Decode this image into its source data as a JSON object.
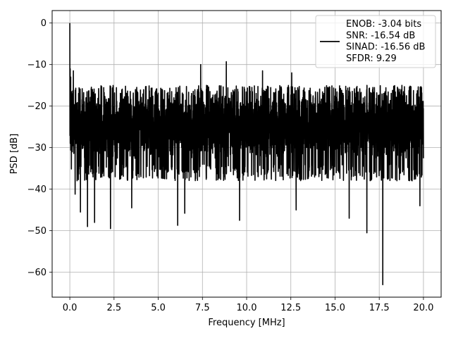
{
  "chart_data": {
    "type": "line",
    "xlabel": "Frequency [MHz]",
    "ylabel": "PSD [dB]",
    "xlim": [
      -1.0,
      21.0
    ],
    "ylim": [
      -66.0,
      3.0
    ],
    "xticks": [
      0.0,
      2.5,
      5.0,
      7.5,
      10.0,
      12.5,
      15.0,
      17.5,
      20.0
    ],
    "xtick_labels": [
      "0.0",
      "2.5",
      "5.0",
      "7.5",
      "10.0",
      "12.5",
      "15.0",
      "17.5",
      "20.0"
    ],
    "yticks": [
      0,
      -10,
      -20,
      -30,
      -40,
      -50,
      -60
    ],
    "ytick_labels": [
      "0",
      "−10",
      "−20",
      "−30",
      "−40",
      "−50",
      "−60"
    ],
    "grid": true,
    "legend_position": "top-right",
    "series": [
      {
        "name": "ENOB: -3.04 bits\nSNR: -16.54 dB\nSINAD: -16.56 dB\nSFDR: 9.29",
        "color": "#000000",
        "x_range": [
          0.0,
          20.0
        ],
        "mean_db": -24.5,
        "upper_envelope_db": -17.0,
        "lower_envelope_db": -34.0,
        "peaks": [
          {
            "x": 0.0,
            "y": 0.0
          },
          {
            "x": 0.02,
            "y": -11.0
          },
          {
            "x": 0.05,
            "y": -13.0
          },
          {
            "x": 0.1,
            "y": -17.0
          },
          {
            "x": 0.15,
            "y": -18.5
          },
          {
            "x": 0.2,
            "y": -11.5
          },
          {
            "x": 0.25,
            "y": -28.0
          },
          {
            "x": 7.4,
            "y": -10.0
          },
          {
            "x": 8.85,
            "y": -9.3
          },
          {
            "x": 10.9,
            "y": -11.5
          },
          {
            "x": 12.55,
            "y": -12.0
          }
        ],
        "dips": [
          {
            "x": 0.3,
            "y": -41.2
          },
          {
            "x": 0.6,
            "y": -45.5
          },
          {
            "x": 1.0,
            "y": -49.0
          },
          {
            "x": 1.4,
            "y": -48.0
          },
          {
            "x": 2.3,
            "y": -49.5
          },
          {
            "x": 3.5,
            "y": -44.5
          },
          {
            "x": 6.1,
            "y": -48.7
          },
          {
            "x": 6.5,
            "y": -45.8
          },
          {
            "x": 9.6,
            "y": -47.5
          },
          {
            "x": 12.8,
            "y": -45.0
          },
          {
            "x": 15.8,
            "y": -47.0
          },
          {
            "x": 16.8,
            "y": -50.5
          },
          {
            "x": 17.7,
            "y": -63.0
          },
          {
            "x": 19.8,
            "y": -44.0
          }
        ]
      }
    ]
  }
}
